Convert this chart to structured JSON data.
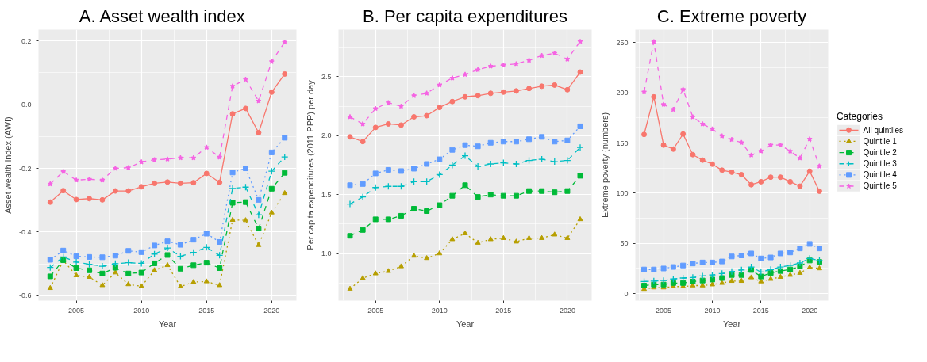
{
  "chart_data": [
    {
      "type": "line",
      "title": "A.   Asset wealth index",
      "xlabel": "Year",
      "ylabel": "Asset wealth index (AWI)",
      "x": [
        2003,
        2004,
        2005,
        2006,
        2007,
        2008,
        2009,
        2010,
        2011,
        2012,
        2013,
        2014,
        2015,
        2016,
        2017,
        2018,
        2019,
        2020,
        2021
      ],
      "xlim": [
        2002.1,
        2021.9
      ],
      "xticks": [
        2005,
        2010,
        2015,
        2020
      ],
      "ylim": [
        -0.615,
        0.235
      ],
      "yticks": [
        {
          "value": -0.6,
          "label": "-0.6"
        },
        {
          "value": -0.4,
          "label": "-0.4"
        },
        {
          "value": -0.2,
          "label": "-0.2"
        },
        {
          "value": 0,
          "label": "0.0"
        },
        {
          "value": 0.2,
          "label": "0.2"
        }
      ],
      "grid": true,
      "legend": false,
      "series": [
        {
          "color": "#f8766d",
          "marker": "circle",
          "line_style": "solid",
          "values": [
            -0.306,
            -0.27,
            -0.298,
            -0.295,
            -0.299,
            -0.271,
            -0.271,
            -0.258,
            -0.247,
            -0.243,
            -0.247,
            -0.245,
            -0.216,
            -0.244,
            -0.029,
            -0.012,
            -0.088,
            0.039,
            0.096
          ]
        },
        {
          "color": "#b79f00",
          "marker": "triangle",
          "line_style": "dotted",
          "values": [
            -0.576,
            -0.489,
            -0.536,
            -0.541,
            -0.567,
            -0.527,
            -0.564,
            -0.57,
            -0.52,
            -0.504,
            -0.571,
            -0.557,
            -0.555,
            -0.567,
            -0.362,
            -0.363,
            -0.441,
            -0.339,
            -0.278
          ]
        },
        {
          "color": "#00ba38",
          "marker": "square",
          "line_style": "dashed",
          "values": [
            -0.539,
            -0.488,
            -0.513,
            -0.52,
            -0.53,
            -0.512,
            -0.53,
            -0.527,
            -0.498,
            -0.472,
            -0.515,
            -0.504,
            -0.496,
            -0.513,
            -0.308,
            -0.306,
            -0.389,
            -0.264,
            -0.214
          ]
        },
        {
          "color": "#00bfc4",
          "marker": "cross",
          "line_style": "dashed",
          "values": [
            -0.511,
            -0.478,
            -0.494,
            -0.501,
            -0.507,
            -0.499,
            -0.496,
            -0.498,
            -0.469,
            -0.45,
            -0.476,
            -0.464,
            -0.448,
            -0.473,
            -0.263,
            -0.259,
            -0.346,
            -0.209,
            -0.164
          ]
        },
        {
          "color": "#619cff",
          "marker": "square",
          "line_style": "dotted",
          "values": [
            -0.487,
            -0.458,
            -0.476,
            -0.478,
            -0.479,
            -0.474,
            -0.459,
            -0.463,
            -0.442,
            -0.429,
            -0.44,
            -0.424,
            -0.405,
            -0.431,
            -0.213,
            -0.2,
            -0.299,
            -0.15,
            -0.104
          ]
        },
        {
          "color": "#f564e3",
          "marker": "star",
          "line_style": "dashed",
          "values": [
            -0.249,
            -0.21,
            -0.237,
            -0.234,
            -0.237,
            -0.2,
            -0.198,
            -0.18,
            -0.173,
            -0.171,
            -0.167,
            -0.167,
            -0.134,
            -0.165,
            0.058,
            0.079,
            0.011,
            0.135,
            0.196
          ]
        }
      ]
    },
    {
      "type": "line",
      "title": "B. Per capita expenditures",
      "xlabel": "Year",
      "ylabel": "Per capita expenditures (2011 PPP) per day",
      "x": [
        2003,
        2004,
        2005,
        2006,
        2007,
        2008,
        2009,
        2010,
        2011,
        2012,
        2013,
        2014,
        2015,
        2016,
        2017,
        2018,
        2019,
        2020,
        2021
      ],
      "xlim": [
        2002.1,
        2021.9
      ],
      "xticks": [
        2005,
        2010,
        2015,
        2020
      ],
      "ylim": [
        0.6,
        2.9
      ],
      "yticks": [
        {
          "value": 1,
          "label": "1.0"
        },
        {
          "value": 1.5,
          "label": "1.5"
        },
        {
          "value": 2,
          "label": "2.0"
        },
        {
          "value": 2.5,
          "label": "2.5"
        }
      ],
      "grid": true,
      "legend": false,
      "series": [
        {
          "color": "#f8766d",
          "marker": "circle",
          "line_style": "solid",
          "values": [
            1.99,
            1.95,
            2.07,
            2.1,
            2.09,
            2.16,
            2.17,
            2.24,
            2.29,
            2.33,
            2.34,
            2.36,
            2.37,
            2.38,
            2.4,
            2.42,
            2.43,
            2.39,
            2.54
          ]
        },
        {
          "color": "#b79f00",
          "marker": "triangle",
          "line_style": "dotted",
          "values": [
            0.7,
            0.79,
            0.83,
            0.85,
            0.89,
            0.98,
            0.96,
            1.0,
            1.12,
            1.17,
            1.09,
            1.12,
            1.13,
            1.1,
            1.13,
            1.13,
            1.16,
            1.13,
            1.29
          ]
        },
        {
          "color": "#00ba38",
          "marker": "square",
          "line_style": "dashed",
          "values": [
            1.15,
            1.2,
            1.29,
            1.29,
            1.32,
            1.38,
            1.36,
            1.41,
            1.49,
            1.58,
            1.48,
            1.5,
            1.49,
            1.49,
            1.53,
            1.53,
            1.52,
            1.53,
            1.66
          ]
        },
        {
          "color": "#00bfc4",
          "marker": "cross",
          "line_style": "dashed",
          "values": [
            1.42,
            1.48,
            1.56,
            1.57,
            1.57,
            1.61,
            1.61,
            1.67,
            1.75,
            1.83,
            1.74,
            1.76,
            1.77,
            1.76,
            1.79,
            1.8,
            1.78,
            1.79,
            1.9
          ]
        },
        {
          "color": "#619cff",
          "marker": "square",
          "line_style": "dotted",
          "values": [
            1.58,
            1.59,
            1.68,
            1.71,
            1.7,
            1.72,
            1.76,
            1.8,
            1.88,
            1.92,
            1.91,
            1.94,
            1.95,
            1.95,
            1.97,
            1.99,
            1.95,
            1.96,
            2.08
          ]
        },
        {
          "color": "#f564e3",
          "marker": "star",
          "line_style": "dashed",
          "values": [
            2.16,
            2.1,
            2.23,
            2.28,
            2.25,
            2.34,
            2.36,
            2.43,
            2.49,
            2.52,
            2.56,
            2.59,
            2.6,
            2.61,
            2.64,
            2.68,
            2.7,
            2.65,
            2.8
          ]
        }
      ]
    },
    {
      "type": "line",
      "title": "C. Extreme poverty",
      "xlabel": "Year",
      "ylabel": "Extreme poverty (numbers)",
      "legend_title": "Categories",
      "x": [
        2003,
        2004,
        2005,
        2006,
        2007,
        2008,
        2009,
        2010,
        2011,
        2012,
        2013,
        2014,
        2015,
        2016,
        2017,
        2018,
        2019,
        2020,
        2021
      ],
      "xlim": [
        2002.1,
        2021.9
      ],
      "xticks": [
        2005,
        2010,
        2015,
        2020
      ],
      "ylim": [
        -7,
        263
      ],
      "yticks": [
        0,
        50,
        100,
        150,
        200,
        250
      ],
      "grid": true,
      "legend": "right",
      "series": [
        {
          "name": "All quintiles",
          "color": "#f8766d",
          "marker": "circle",
          "line_style": "solid",
          "values": [
            158.6,
            196,
            148,
            144,
            159,
            138.5,
            133,
            129,
            123,
            121,
            118.5,
            108.5,
            111.5,
            116,
            116,
            111.5,
            107,
            122,
            102
          ]
        },
        {
          "name": "Quintile 1",
          "color": "#b79f00",
          "marker": "triangle",
          "line_style": "dotted",
          "values": [
            4.5,
            6,
            6,
            7,
            7,
            8,
            8,
            9,
            10.5,
            12.5,
            12.5,
            16,
            12,
            14.5,
            16.5,
            18.5,
            20.5,
            26,
            25
          ]
        },
        {
          "name": "Quintile 2",
          "color": "#00ba38",
          "marker": "square",
          "line_style": "dashed",
          "values": [
            8,
            9,
            9,
            10.5,
            10.5,
            12,
            13,
            14,
            15.5,
            18.5,
            18.5,
            23.5,
            17,
            20.5,
            22.5,
            24,
            27,
            33,
            31.5
          ]
        },
        {
          "name": "Quintile 3",
          "color": "#00bfc4",
          "marker": "cross",
          "line_style": "dashed",
          "values": [
            12,
            12.5,
            13,
            14.5,
            15.5,
            16,
            17.5,
            18.5,
            20,
            22,
            23.5,
            26.5,
            21.5,
            24,
            26.5,
            28,
            30.5,
            35,
            33
          ]
        },
        {
          "name": "Quintile 4",
          "color": "#619cff",
          "marker": "square",
          "line_style": "dotted",
          "values": [
            24,
            24,
            25,
            26.5,
            28,
            30,
            31,
            31,
            32,
            37,
            38,
            40,
            35,
            36,
            40,
            41,
            45,
            49.5,
            45
          ]
        },
        {
          "name": "Quintile 5",
          "color": "#f564e3",
          "marker": "star",
          "line_style": "dashed",
          "values": [
            201,
            251,
            188.5,
            183.5,
            203.5,
            176,
            169,
            164,
            157,
            153.5,
            150.5,
            138,
            142,
            148,
            148,
            142,
            135,
            154,
            127
          ]
        }
      ]
    }
  ]
}
